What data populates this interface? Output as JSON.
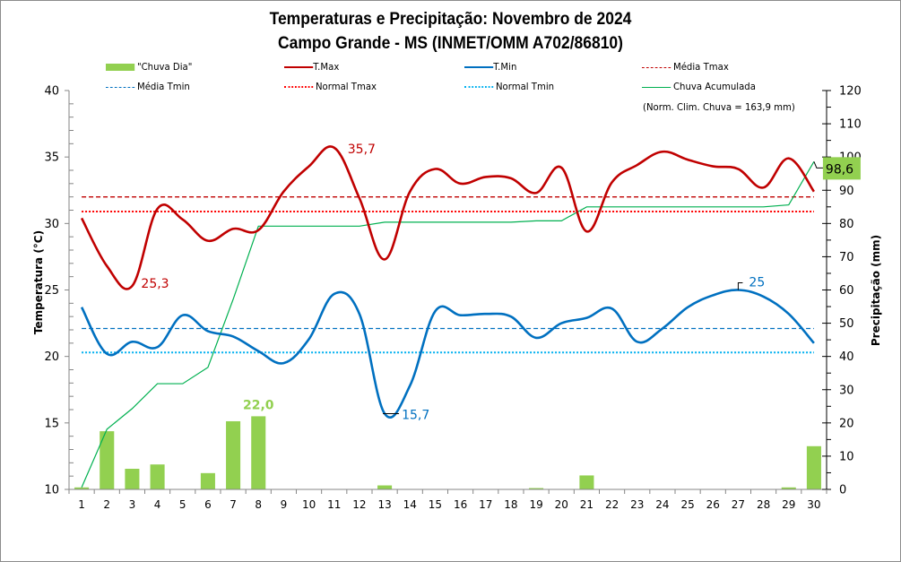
{
  "chart_data": {
    "type": "bar+line",
    "title": "Temperaturas  e Precipitação: Novembro de 2024",
    "subtitle": "Campo Grande - MS (INMET/OMM  A702/86810)",
    "ylabel_left": "Temperatura (°C)",
    "ylabel_right": "Precipitação (mm)",
    "ylim_left": [
      10,
      40
    ],
    "yticks_left": [
      "10",
      "15",
      "20",
      "25",
      "30",
      "35",
      "40"
    ],
    "ylim_right": [
      0,
      120
    ],
    "yticks_right": [
      "0",
      "10",
      "20",
      "30",
      "40",
      "50",
      "60",
      "70",
      "80",
      "90",
      "100",
      "110",
      "120"
    ],
    "categories": [
      "1",
      "2",
      "3",
      "4",
      "5",
      "6",
      "7",
      "8",
      "9",
      "10",
      "11",
      "12",
      "13",
      "14",
      "15",
      "16",
      "17",
      "18",
      "19",
      "20",
      "21",
      "22",
      "23",
      "24",
      "25",
      "26",
      "27",
      "28",
      "29",
      "30"
    ],
    "series": [
      {
        "name": "\"Chuva Dia\"",
        "type": "bar",
        "axis": "right",
        "color": "#92d050",
        "values": [
          0.6,
          17.5,
          6.2,
          7.5,
          0,
          4.9,
          20.5,
          22.0,
          0,
          0,
          0,
          0,
          1.2,
          0,
          0,
          0,
          0,
          0,
          0.4,
          0,
          4.2,
          0,
          0,
          0,
          0,
          0,
          0,
          0,
          0.6,
          13.0
        ]
      },
      {
        "name": "T.Max",
        "type": "line",
        "axis": "left",
        "color": "#c00000",
        "style": "solid-smooth",
        "values": [
          30.4,
          26.8,
          25.3,
          31.1,
          30.3,
          28.7,
          29.6,
          29.5,
          32.4,
          34.3,
          35.7,
          31.9,
          27.3,
          32.4,
          34.1,
          33.0,
          33.5,
          33.4,
          32.3,
          34.2,
          29.4,
          33.1,
          34.4,
          35.4,
          34.8,
          34.3,
          34.1,
          32.7,
          34.9,
          32.4
        ]
      },
      {
        "name": "T.Min",
        "type": "line",
        "axis": "left",
        "color": "#0070c0",
        "style": "solid-smooth",
        "values": [
          23.7,
          20.2,
          21.1,
          20.7,
          23.1,
          21.9,
          21.5,
          20.4,
          19.5,
          21.3,
          24.7,
          23.2,
          15.7,
          17.8,
          23.4,
          23.1,
          23.2,
          23.0,
          21.4,
          22.5,
          22.9,
          23.6,
          21.1,
          22.1,
          23.7,
          24.6,
          25.0,
          24.5,
          23.2,
          21.0
        ]
      },
      {
        "name": "Média Tmax",
        "type": "hline",
        "axis": "left",
        "color": "#c00000",
        "style": "dashed",
        "value": 32.0
      },
      {
        "name": "Média Tmin",
        "type": "hline",
        "axis": "left",
        "color": "#0070c0",
        "style": "dashed",
        "value": 22.1
      },
      {
        "name": "Normal Tmax",
        "type": "hline",
        "axis": "left",
        "color": "#ff0000",
        "style": "dotted",
        "value": 30.9
      },
      {
        "name": "Normal Tmin",
        "type": "hline",
        "axis": "left",
        "color": "#00b0f0",
        "style": "dotted",
        "value": 20.3
      },
      {
        "name": "Chuva Acumulada",
        "type": "line",
        "axis": "right",
        "color": "#00b050",
        "style": "solid",
        "values": [
          0.6,
          18.1,
          24.3,
          31.8,
          31.8,
          36.7,
          57.2,
          79.2,
          79.2,
          79.2,
          79.2,
          79.2,
          80.4,
          80.4,
          80.4,
          80.4,
          80.4,
          80.4,
          80.8,
          80.8,
          85.0,
          85.0,
          85.0,
          85.0,
          85.0,
          85.0,
          85.0,
          85.0,
          85.6,
          98.6
        ]
      }
    ],
    "annotations": [
      {
        "text": "25,3",
        "series": "T.Max",
        "day": 3,
        "color": "#c00000"
      },
      {
        "text": "35,7",
        "series": "T.Max",
        "day": 11,
        "color": "#c00000"
      },
      {
        "text": "15,7",
        "series": "T.Min",
        "day": 13,
        "color": "#0070c0"
      },
      {
        "text": "25",
        "series": "T.Min",
        "day": 27,
        "color": "#0070c0"
      },
      {
        "text": "22,0",
        "series": "\"Chuva Dia\"",
        "day": 8,
        "color": "#92d050"
      },
      {
        "text": "98,6",
        "series": "Chuva Acumulada",
        "day": 30,
        "color": "#000000",
        "background": "#92d050"
      }
    ],
    "note": "(Norm. Clim. Chuva = 163,9 mm)",
    "legend_position": "top",
    "grid": false
  }
}
